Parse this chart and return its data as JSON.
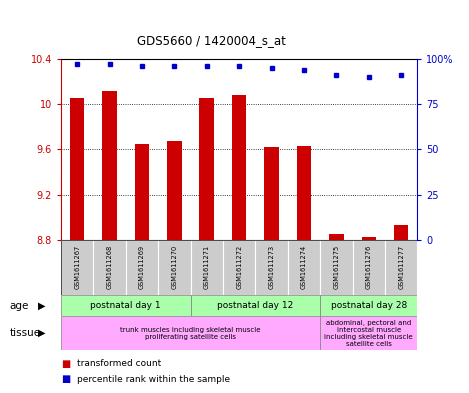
{
  "title": "GDS5660 / 1420004_s_at",
  "samples": [
    "GSM1611267",
    "GSM1611268",
    "GSM1611269",
    "GSM1611270",
    "GSM1611271",
    "GSM1611272",
    "GSM1611273",
    "GSM1611274",
    "GSM1611275",
    "GSM1611276",
    "GSM1611277"
  ],
  "transformed_count": [
    10.05,
    10.12,
    9.65,
    9.67,
    10.05,
    10.08,
    9.62,
    9.63,
    8.855,
    8.82,
    8.93
  ],
  "percentile_rank": [
    97,
    97,
    96,
    96,
    96,
    96,
    95,
    94,
    91,
    90,
    91
  ],
  "ylim_left": [
    8.8,
    10.4
  ],
  "ylim_right": [
    0,
    100
  ],
  "yticks_left": [
    8.8,
    9.2,
    9.6,
    10.0,
    10.4
  ],
  "yticks_right": [
    0,
    25,
    50,
    75,
    100
  ],
  "ytick_labels_left": [
    "8.8",
    "9.2",
    "9.6",
    "10",
    "10.4"
  ],
  "ytick_labels_right": [
    "0",
    "25",
    "50",
    "75",
    "100%"
  ],
  "bar_color": "#cc0000",
  "dot_color": "#0000cc",
  "bar_bottom": 8.8,
  "age_groups": [
    {
      "label": "postnatal day 1",
      "start": 0,
      "end": 4
    },
    {
      "label": "postnatal day 12",
      "start": 4,
      "end": 8
    },
    {
      "label": "postnatal day 28",
      "start": 8,
      "end": 11
    }
  ],
  "tissue_groups": [
    {
      "label": "trunk muscles including skeletal muscle\nproliferating satellite cells",
      "start": 0,
      "end": 8
    },
    {
      "label": "abdominal, pectoral and\nintercostal muscle\nincluding skeletal muscle\nsatellite cells",
      "start": 8,
      "end": 11
    }
  ],
  "age_bg_color": "#aaffaa",
  "tissue_bg_color": "#ffaaff",
  "sample_bg_color": "#cccccc",
  "legend_items": [
    {
      "label": "transformed count",
      "color": "#cc0000"
    },
    {
      "label": "percentile rank within the sample",
      "color": "#0000cc"
    }
  ]
}
